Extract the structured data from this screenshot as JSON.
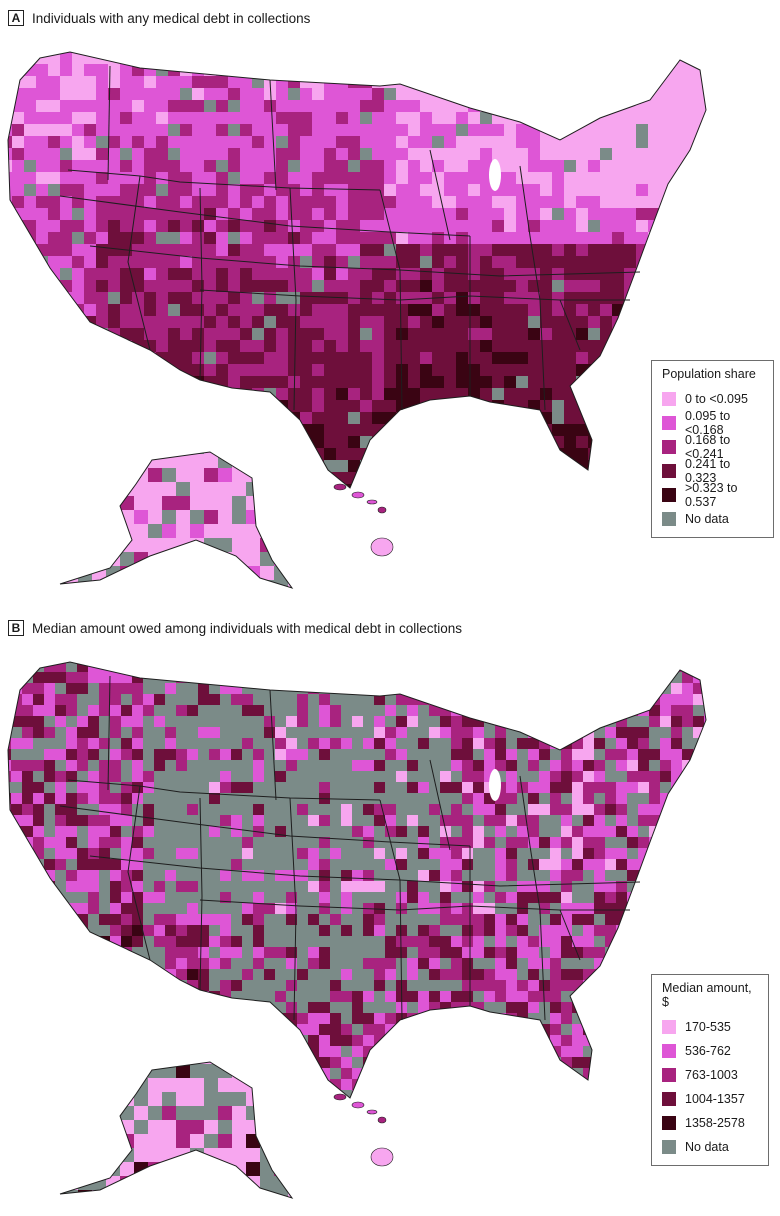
{
  "panels": [
    {
      "letter": "A",
      "title": "Individuals with any medical debt in collections",
      "legend_title": "Population share",
      "legend": [
        {
          "label": "0 to <0.095",
          "color": "#f7a6ef"
        },
        {
          "label": "0.095 to <0.168",
          "color": "#de56d6"
        },
        {
          "label": "0.168 to <0.241",
          "color": "#a8237f"
        },
        {
          "label": "0.241 to 0.323",
          "color": "#6e0f3b"
        },
        {
          "label": ">0.323 to 0.537",
          "color": "#3a0413"
        },
        {
          "label": "No data",
          "color": "#7b8b88"
        }
      ]
    },
    {
      "letter": "B",
      "title": "Median amount owed among individuals with medical debt in collections",
      "legend_title": "Median amount, $",
      "legend": [
        {
          "label": "170-535",
          "color": "#f7a6ef"
        },
        {
          "label": "536-762",
          "color": "#de56d6"
        },
        {
          "label": "763-1003",
          "color": "#a8237f"
        },
        {
          "label": "1004-1357",
          "color": "#6e0f3b"
        },
        {
          "label": "1358-2578",
          "color": "#3a0413"
        },
        {
          "label": "No data",
          "color": "#7b8b88"
        }
      ]
    }
  ]
}
